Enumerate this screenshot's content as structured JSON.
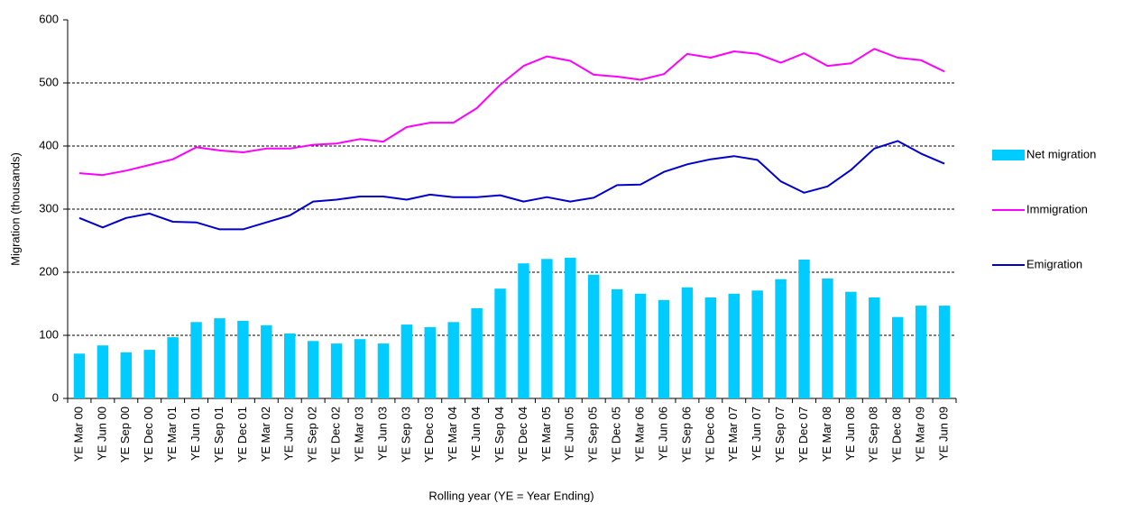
{
  "chart_data": {
    "type": "bar_line",
    "y_label": "Migration (thousands)",
    "x_label": "Rolling year (YE = Year Ending)",
    "categories": [
      "YE Mar 00",
      "YE Jun 00",
      "YE Sep 00",
      "YE Dec 00",
      "YE Mar 01",
      "YE Jun 01",
      "YE Sep 01",
      "YE Dec 01",
      "YE Mar 02",
      "YE Jun 02",
      "YE Sep 02",
      "YE Dec 02",
      "YE Mar 03",
      "YE Jun 03",
      "YE Sep 03",
      "YE Dec 03",
      "YE Mar 04",
      "YE Jun 04",
      "YE Sep 04",
      "YE Dec 04",
      "YE Mar 05",
      "YE Jun 05",
      "YE Sep 05",
      "YE Dec 05",
      "YE Mar 06",
      "YE Jun 06",
      "YE Sep 06",
      "YE Dec 06",
      "YE Mar 07",
      "YE Jun 07",
      "YE Sep 07",
      "YE Dec 07",
      "YE Mar 08",
      "YE Jun 08",
      "YE Sep 08",
      "YE Dec 08",
      "YE Mar 09",
      "YE Jun 09"
    ],
    "series": [
      {
        "name": "Net migration",
        "kind": "bar",
        "color": "#00ccff",
        "values": [
          71,
          84,
          73,
          77,
          97,
          121,
          127,
          123,
          116,
          103,
          91,
          87,
          94,
          87,
          117,
          113,
          121,
          143,
          174,
          214,
          221,
          223,
          196,
          173,
          166,
          156,
          176,
          160,
          166,
          171,
          189,
          220,
          190,
          169,
          160,
          129,
          147,
          147
        ]
      },
      {
        "name": "Immigration",
        "kind": "line",
        "color": "#ff00ff",
        "values": [
          357,
          354,
          361,
          370,
          379,
          398,
          393,
          390,
          396,
          396,
          402,
          404,
          411,
          407,
          430,
          437,
          437,
          460,
          497,
          527,
          542,
          535,
          513,
          510,
          505,
          514,
          546,
          540,
          550,
          546,
          532,
          547,
          527,
          531,
          554,
          540,
          536,
          518
        ]
      },
      {
        "name": "Emigration",
        "kind": "line",
        "color": "#0000cc",
        "values": [
          286,
          271,
          286,
          293,
          280,
          279,
          268,
          268,
          279,
          290,
          312,
          315,
          320,
          320,
          315,
          323,
          319,
          319,
          322,
          312,
          319,
          312,
          318,
          338,
          339,
          359,
          371,
          379,
          384,
          378,
          344,
          326,
          336,
          362,
          396,
          408,
          388,
          372
        ]
      }
    ],
    "ylim": [
      0,
      600
    ],
    "yticks": [
      0,
      100,
      200,
      300,
      400,
      500,
      600
    ],
    "grid": true,
    "legend": "right"
  }
}
